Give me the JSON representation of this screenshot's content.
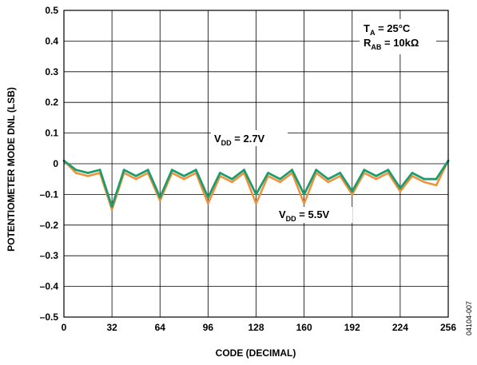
{
  "chart_data": {
    "type": "line",
    "xlabel": "CODE (DECIMAL)",
    "ylabel": "POTENTIOMETER MODE DNL (LSB)",
    "xlim": [
      0,
      256
    ],
    "ylim": [
      -0.5,
      0.5
    ],
    "x_ticks": [
      "0",
      "32",
      "64",
      "96",
      "128",
      "160",
      "192",
      "224",
      "256"
    ],
    "y_ticks": [
      "0.5",
      "0.4",
      "0.3",
      "0.2",
      "0.1",
      "0",
      "–0.1",
      "–0.2",
      "–0.3",
      "–0.4",
      "–0.5"
    ],
    "grid": true,
    "colors": {
      "vdd_5v5": "#f0923c",
      "vdd_2v7": "#1f9c6e"
    },
    "series": [
      {
        "name": "VDD = 5.5V",
        "x": [
          0,
          8,
          16,
          24,
          32,
          40,
          48,
          56,
          64,
          72,
          80,
          88,
          96,
          104,
          112,
          120,
          128,
          136,
          144,
          152,
          160,
          168,
          176,
          184,
          192,
          200,
          208,
          216,
          224,
          232,
          240,
          248,
          256
        ],
        "values": [
          0.01,
          -0.03,
          -0.04,
          -0.03,
          -0.15,
          -0.03,
          -0.05,
          -0.03,
          -0.12,
          -0.03,
          -0.05,
          -0.03,
          -0.13,
          -0.04,
          -0.06,
          -0.03,
          -0.13,
          -0.04,
          -0.06,
          -0.03,
          -0.13,
          -0.03,
          -0.06,
          -0.04,
          -0.1,
          -0.03,
          -0.05,
          -0.03,
          -0.09,
          -0.04,
          -0.06,
          -0.07,
          0.01
        ]
      },
      {
        "name": "VDD = 2.7V",
        "x": [
          0,
          8,
          16,
          24,
          32,
          40,
          48,
          56,
          64,
          72,
          80,
          88,
          96,
          104,
          112,
          120,
          128,
          136,
          144,
          152,
          160,
          168,
          176,
          184,
          192,
          200,
          208,
          216,
          224,
          232,
          240,
          248,
          256
        ],
        "values": [
          0.01,
          -0.02,
          -0.03,
          -0.02,
          -0.14,
          -0.02,
          -0.04,
          -0.02,
          -0.11,
          -0.02,
          -0.04,
          -0.02,
          -0.11,
          -0.03,
          -0.05,
          -0.02,
          -0.1,
          -0.03,
          -0.05,
          -0.02,
          -0.1,
          -0.02,
          -0.05,
          -0.03,
          -0.09,
          -0.02,
          -0.04,
          -0.02,
          -0.08,
          -0.03,
          -0.05,
          -0.05,
          0.01
        ]
      }
    ],
    "annotations": {
      "ta_var": "T",
      "ta_sub": "A",
      "ta_val": " = 25°C",
      "rab_var": "R",
      "rab_sub": "AB",
      "rab_val": " = 10kΩ",
      "vdd27_var": "V",
      "vdd27_sub": "DD",
      "vdd27_val": " = 2.7V",
      "vdd55_var": "V",
      "vdd55_sub": "DD",
      "vdd55_val": " = 5.5V"
    },
    "figure_id": "04104-007"
  }
}
